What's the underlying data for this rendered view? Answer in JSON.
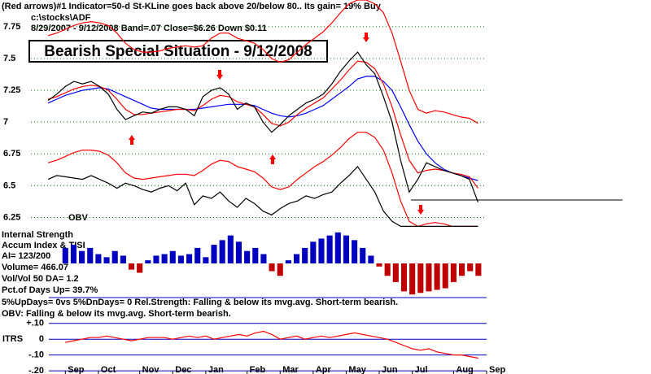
{
  "chart_data": [
    {
      "type": "line",
      "title": "Bearish Special Situation - 9/12/2008",
      "annotations": [
        "(Red arrows)#1 Indicator=50-d St-KLine goes back above 20/below 80.. Its gain= 19% Buy",
        "c:\\stocks\\ADF",
        "8/29/2007 - 9/12/2008  Band=.07  Close=$6.26  Down $0.11",
        "OBV"
      ],
      "x": [
        0,
        1,
        2,
        3,
        4,
        5,
        6,
        7,
        8,
        9,
        10,
        11,
        12,
        13,
        14,
        15,
        16,
        17,
        18,
        19,
        20,
        21,
        22,
        23,
        24,
        25,
        26,
        27,
        28,
        29,
        30,
        31,
        32,
        33,
        34,
        35,
        36,
        37,
        38,
        39,
        40,
        41,
        42,
        43,
        44,
        45,
        46,
        47,
        48,
        49,
        50
      ],
      "xlim": [
        -2,
        51
      ],
      "ylim": [
        6.17,
        7.96
      ],
      "yticks": [
        6.25,
        6.5,
        6.75,
        7,
        7.25,
        7.5,
        7.75
      ],
      "grid": true,
      "grid_color": "#008000",
      "series": [
        {
          "color": "#ff0000",
          "values": [
            7.68,
            7.7,
            7.73,
            7.76,
            7.78,
            7.79,
            7.78,
            7.76,
            7.7,
            7.62,
            7.57,
            7.55,
            7.55,
            7.56,
            7.58,
            7.59,
            7.6,
            7.59,
            7.6,
            7.66,
            7.7,
            7.7,
            7.66,
            7.64,
            7.62,
            7.57,
            7.5,
            7.47,
            7.49,
            7.55,
            7.61,
            7.66,
            7.71,
            7.78,
            7.86,
            7.93,
            7.96,
            7.96,
            7.93,
            7.86,
            7.7,
            7.48,
            7.25,
            7.1,
            7.07,
            7.09,
            7.08,
            7.06,
            7.04,
            7.03,
            6.99
          ]
        },
        {
          "color": "#ff0000",
          "values": [
            6.68,
            6.7,
            6.73,
            6.76,
            6.78,
            6.78,
            6.77,
            6.74,
            6.68,
            6.6,
            6.56,
            6.55,
            6.56,
            6.57,
            6.58,
            6.59,
            6.59,
            6.58,
            6.62,
            6.67,
            6.7,
            6.69,
            6.65,
            6.63,
            6.61,
            6.56,
            6.49,
            6.47,
            6.49,
            6.55,
            6.6,
            6.65,
            6.69,
            6.74,
            6.8,
            6.87,
            6.92,
            6.92,
            6.88,
            6.78,
            6.6,
            6.38,
            6.22,
            6.18,
            6.2,
            6.21,
            6.2,
            6.18,
            6.18,
            6.18,
            6.18
          ]
        },
        {
          "color": "#0000ff",
          "values": [
            7.15,
            7.18,
            7.21,
            7.23,
            7.25,
            7.26,
            7.27,
            7.26,
            7.23,
            7.2,
            7.17,
            7.14,
            7.11,
            7.1,
            7.1,
            7.1,
            7.1,
            7.1,
            7.11,
            7.12,
            7.13,
            7.14,
            7.14,
            7.14,
            7.13,
            7.1,
            7.07,
            7.05,
            7.04,
            7.05,
            7.07,
            7.1,
            7.13,
            7.18,
            7.23,
            7.28,
            7.34,
            7.36,
            7.36,
            7.32,
            7.25,
            7.12,
            6.98,
            6.85,
            6.75,
            6.68,
            6.63,
            6.6,
            6.58,
            6.56,
            6.54
          ]
        },
        {
          "color": "#ff0000",
          "values": [
            7.18,
            7.2,
            7.23,
            7.26,
            7.28,
            7.29,
            7.28,
            7.25,
            7.18,
            7.1,
            7.06,
            7.06,
            7.07,
            7.08,
            7.09,
            7.1,
            7.1,
            7.09,
            7.13,
            7.18,
            7.21,
            7.2,
            7.16,
            7.14,
            7.12,
            7.06,
            6.99,
            6.97,
            7.0,
            7.06,
            7.11,
            7.15,
            7.19,
            7.26,
            7.33,
            7.41,
            7.48,
            7.47,
            7.42,
            7.3,
            7.12,
            6.9,
            6.7,
            6.6,
            6.62,
            6.63,
            6.62,
            6.6,
            6.59,
            6.57,
            6.48
          ]
        },
        {
          "color": "#000000",
          "values": [
            6.55,
            6.58,
            6.57,
            6.56,
            6.55,
            6.58,
            6.55,
            6.52,
            6.48,
            6.52,
            6.5,
            6.47,
            6.45,
            6.48,
            6.5,
            6.46,
            6.52,
            6.35,
            6.42,
            6.4,
            6.45,
            6.38,
            6.33,
            6.4,
            6.36,
            6.3,
            6.27,
            6.32,
            6.36,
            6.38,
            6.42,
            6.4,
            6.43,
            6.45,
            6.52,
            6.58,
            6.65,
            6.55,
            6.45,
            6.3,
            6.22,
            6.18,
            6.18,
            6.18,
            6.18,
            6.18,
            6.18,
            6.18,
            6.18,
            6.18,
            6.18
          ]
        },
        {
          "color": "#000000",
          "values": [
            7.17,
            7.22,
            7.28,
            7.32,
            7.3,
            7.32,
            7.28,
            7.22,
            7.1,
            7.02,
            7.05,
            7.08,
            7.07,
            7.1,
            7.12,
            7.12,
            7.1,
            7.05,
            7.2,
            7.25,
            7.27,
            7.22,
            7.1,
            7.15,
            7.12,
            7.0,
            6.92,
            6.98,
            7.05,
            7.1,
            7.15,
            7.18,
            7.22,
            7.3,
            7.4,
            7.48,
            7.55,
            7.45,
            7.38,
            7.2,
            7.0,
            6.7,
            6.45,
            6.55,
            6.68,
            6.65,
            6.62,
            6.6,
            6.58,
            6.55,
            6.37
          ]
        }
      ]
    },
    {
      "type": "bar",
      "title": "Internal Strength",
      "annotations": [
        "Accum Index & TISI",
        "AI= 123/200",
        "Volume= 466.07",
        "Vol/Vol 50 DA= 1.2",
        "Pct.of Days Up= 39.7%",
        "5%UpDays= 0vs 5%DnDays= 0  Rel.Strength: Falling & below its mvg.avg. Short-term bearish.",
        "OBV: Falling & below its mvg.avg. Short-term bearish."
      ],
      "x": [
        0,
        1,
        2,
        3,
        4,
        5,
        6,
        7,
        8,
        9,
        10,
        11,
        12,
        13,
        14,
        15,
        16,
        17,
        18,
        19,
        20,
        21,
        22,
        23,
        24,
        25,
        26,
        27,
        28,
        29,
        30,
        31,
        32,
        33,
        34,
        35,
        36,
        37,
        38,
        39,
        40,
        41,
        42,
        43,
        44,
        45,
        46,
        47,
        48,
        49,
        50
      ],
      "xlim": [
        -2,
        51
      ],
      "ylim": [
        -0.22,
        0.22
      ],
      "color": "#0000c0",
      "negative_color": "#c00000",
      "values": [
        0.1,
        0.12,
        0.08,
        0.1,
        0.06,
        0.04,
        0.08,
        0.05,
        -0.04,
        -0.06,
        0.02,
        0.05,
        0.06,
        0.08,
        0.05,
        0.06,
        0.1,
        0.04,
        0.12,
        0.15,
        0.18,
        0.14,
        0.08,
        0.1,
        0.06,
        -0.05,
        -0.08,
        0.02,
        0.06,
        0.1,
        0.14,
        0.16,
        0.18,
        0.2,
        0.18,
        0.15,
        0.1,
        0.05,
        -0.02,
        -0.08,
        -0.12,
        -0.18,
        -0.2,
        -0.19,
        -0.18,
        -0.17,
        -0.16,
        -0.12,
        -0.08,
        -0.05,
        -0.08
      ]
    },
    {
      "type": "line",
      "title": "ITRS",
      "x": [
        0,
        1,
        2,
        3,
        4,
        5,
        6,
        7,
        8,
        9,
        10,
        11,
        12,
        13,
        14,
        15,
        16,
        17,
        18,
        19,
        20,
        21,
        22,
        23,
        24,
        25,
        26,
        27,
        28,
        29,
        30,
        31,
        32,
        33,
        34,
        35,
        36,
        37,
        38,
        39,
        40,
        41,
        42,
        43,
        44,
        45,
        46,
        47,
        48,
        49,
        50
      ],
      "xlim": [
        -2,
        51
      ],
      "xticks": [
        {
          "value": 0,
          "label": "Sep"
        },
        {
          "value": 4,
          "label": "Oct"
        },
        {
          "value": 9,
          "label": "Nov"
        },
        {
          "value": 13,
          "label": "Dec"
        },
        {
          "value": 17,
          "label": "Jan"
        },
        {
          "value": 22,
          "label": "Feb"
        },
        {
          "value": 26,
          "label": "Mar"
        },
        {
          "value": 30,
          "label": "Apr"
        },
        {
          "value": 34,
          "label": "May"
        },
        {
          "value": 38,
          "label": "Jun"
        },
        {
          "value": 42,
          "label": "Jul"
        },
        {
          "value": 47,
          "label": "Aug"
        },
        {
          "value": 51,
          "label": "Sep"
        }
      ],
      "ylim": [
        -0.22,
        0.15
      ],
      "yticks": [
        {
          "value": 0.1,
          "label": "+.10"
        },
        0,
        {
          "value": -0.1,
          "label": "-.10"
        },
        {
          "value": -0.2,
          "label": "-.20"
        }
      ],
      "grid": true,
      "grid_color": "#0000c0",
      "series": [
        {
          "color": "#ff0000",
          "values": [
            -0.02,
            -0.01,
            0,
            0.01,
            0.01,
            0.02,
            0.01,
            0,
            -0.01,
            0,
            0.01,
            0.01,
            0.01,
            0,
            0.01,
            0.02,
            0.01,
            0.02,
            0,
            0.01,
            0.02,
            0.03,
            0.02,
            0.04,
            0.05,
            0.03,
            0,
            0.01,
            0.02,
            0,
            0.01,
            0.02,
            0.01,
            0.02,
            0.03,
            0.04,
            0.03,
            0.02,
            0.01,
            0,
            -0.02,
            -0.04,
            -0.06,
            -0.07,
            -0.06,
            -0.08,
            -0.09,
            -0.1,
            -0.1,
            -0.11,
            -0.12
          ]
        }
      ]
    }
  ]
}
